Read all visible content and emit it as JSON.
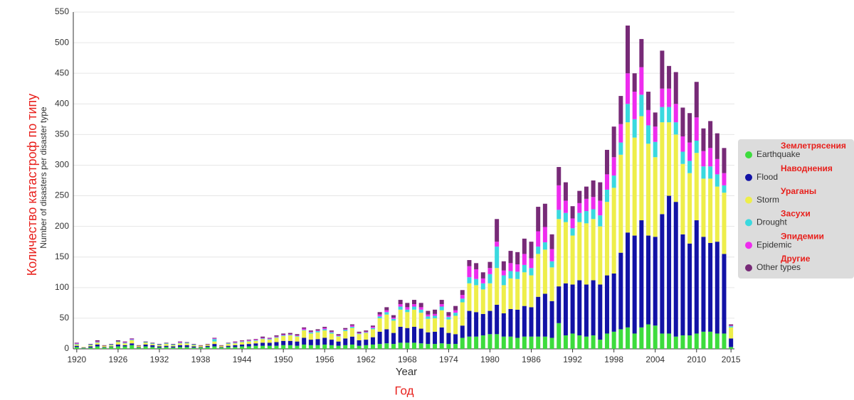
{
  "chart_data": {
    "type": "stacked_bar",
    "x_label": "Year",
    "y_label": "Number of disasters per disaster type",
    "annotations": [
      "Количество катастроф по типу",
      "Год"
    ],
    "legend_annotations": [
      "Землетрясения",
      "Наводнения",
      "Ураганы",
      "Засухи",
      "Эпидемии",
      "Другие"
    ],
    "legend": "right",
    "grid": true,
    "xlim": [
      1919.5,
      2015.5
    ],
    "xticks": [
      1920,
      1926,
      1932,
      1938,
      1944,
      1950,
      1956,
      1962,
      1968,
      1974,
      1980,
      1986,
      1992,
      1998,
      2004,
      2010,
      2015
    ],
    "ylim": [
      0,
      550
    ],
    "yticks": [
      0,
      50,
      100,
      150,
      200,
      250,
      300,
      350,
      400,
      450,
      500,
      550
    ],
    "x": [
      1920,
      1921,
      1922,
      1923,
      1924,
      1925,
      1926,
      1927,
      1928,
      1929,
      1930,
      1931,
      1932,
      1933,
      1934,
      1935,
      1936,
      1937,
      1938,
      1939,
      1940,
      1941,
      1942,
      1943,
      1944,
      1945,
      1946,
      1947,
      1948,
      1949,
      1950,
      1951,
      1952,
      1953,
      1954,
      1955,
      1956,
      1957,
      1958,
      1959,
      1960,
      1961,
      1962,
      1963,
      1964,
      1965,
      1966,
      1967,
      1968,
      1969,
      1970,
      1971,
      1972,
      1973,
      1974,
      1975,
      1976,
      1977,
      1978,
      1979,
      1980,
      1981,
      1982,
      1983,
      1984,
      1985,
      1986,
      1987,
      1988,
      1989,
      1990,
      1991,
      1992,
      1993,
      1994,
      1995,
      1996,
      1997,
      1998,
      1999,
      2000,
      2001,
      2002,
      2003,
      2004,
      2005,
      2006,
      2007,
      2008,
      2009,
      2010,
      2011,
      2012,
      2013,
      2014,
      2015
    ],
    "series": [
      {
        "name": "Earthquake",
        "color": "#3ddc3d",
        "values": [
          3,
          1,
          2,
          4,
          2,
          3,
          4,
          4,
          6,
          2,
          4,
          3,
          2,
          3,
          2,
          3,
          3,
          2,
          2,
          3,
          4,
          2,
          3,
          3,
          4,
          4,
          5,
          5,
          5,
          5,
          6,
          6,
          5,
          7,
          6,
          6,
          7,
          6,
          5,
          6,
          7,
          5,
          6,
          7,
          8,
          9,
          8,
          10,
          10,
          10,
          9,
          8,
          8,
          9,
          8,
          8,
          18,
          20,
          20,
          22,
          24,
          24,
          20,
          20,
          18,
          20,
          20,
          20,
          20,
          18,
          42,
          22,
          25,
          22,
          20,
          22,
          15,
          25,
          28,
          32,
          35,
          25,
          35,
          40,
          38,
          25,
          25,
          20,
          22,
          22,
          25,
          28,
          28,
          25,
          25,
          3
        ]
      },
      {
        "name": "Flood",
        "color": "#1212a6",
        "values": [
          2,
          1,
          2,
          3,
          1,
          1,
          3,
          2,
          3,
          1,
          3,
          3,
          2,
          2,
          2,
          3,
          3,
          2,
          1,
          2,
          4,
          1,
          2,
          3,
          3,
          4,
          4,
          5,
          5,
          6,
          7,
          7,
          7,
          11,
          9,
          10,
          11,
          9,
          7,
          11,
          13,
          9,
          9,
          12,
          20,
          23,
          18,
          26,
          24,
          26,
          24,
          19,
          20,
          26,
          18,
          16,
          20,
          42,
          40,
          35,
          38,
          48,
          38,
          45,
          46,
          50,
          48,
          65,
          70,
          60,
          60,
          85,
          80,
          90,
          85,
          90,
          90,
          95,
          95,
          125,
          155,
          160,
          175,
          145,
          145,
          195,
          225,
          220,
          165,
          150,
          185,
          155,
          145,
          150,
          130,
          14
        ]
      },
      {
        "name": "Storm",
        "color": "#eeee4a",
        "values": [
          2,
          1,
          2,
          3,
          2,
          2,
          4,
          3,
          5,
          2,
          3,
          2,
          2,
          3,
          2,
          3,
          3,
          2,
          2,
          2,
          4,
          2,
          3,
          3,
          4,
          4,
          4,
          6,
          5,
          7,
          8,
          9,
          8,
          12,
          10,
          11,
          12,
          10,
          8,
          12,
          14,
          10,
          11,
          13,
          22,
          24,
          20,
          28,
          26,
          28,
          26,
          22,
          22,
          28,
          22,
          30,
          38,
          45,
          44,
          40,
          45,
          60,
          46,
          50,
          50,
          55,
          52,
          70,
          72,
          55,
          110,
          100,
          80,
          95,
          100,
          100,
          95,
          120,
          140,
          160,
          180,
          160,
          170,
          150,
          130,
          150,
          120,
          110,
          115,
          115,
          110,
          95,
          105,
          90,
          100,
          18
        ]
      },
      {
        "name": "Drought",
        "color": "#3ad9df",
        "values": [
          1,
          0,
          1,
          1,
          0,
          1,
          1,
          1,
          1,
          0,
          1,
          1,
          1,
          1,
          1,
          1,
          1,
          1,
          0,
          0,
          4,
          0,
          1,
          1,
          1,
          1,
          1,
          1,
          1,
          1,
          1,
          1,
          1,
          1,
          2,
          2,
          2,
          2,
          1,
          2,
          2,
          1,
          1,
          2,
          3,
          4,
          3,
          5,
          4,
          5,
          5,
          4,
          4,
          6,
          4,
          5,
          6,
          10,
          10,
          10,
          15,
          35,
          16,
          12,
          12,
          12,
          12,
          12,
          12,
          10,
          15,
          15,
          12,
          15,
          20,
          16,
          18,
          20,
          20,
          20,
          30,
          30,
          35,
          30,
          25,
          25,
          25,
          20,
          20,
          20,
          20,
          20,
          20,
          20,
          12,
          2
        ]
      },
      {
        "name": "Epidemic",
        "color": "#ee2cee",
        "values": [
          1,
          0,
          0,
          1,
          0,
          0,
          0,
          1,
          1,
          0,
          0,
          0,
          0,
          0,
          0,
          1,
          0,
          0,
          0,
          0,
          1,
          0,
          0,
          1,
          1,
          1,
          1,
          1,
          1,
          1,
          1,
          1,
          1,
          2,
          1,
          1,
          2,
          1,
          1,
          1,
          2,
          1,
          1,
          2,
          3,
          3,
          2,
          4,
          4,
          4,
          4,
          3,
          3,
          4,
          2,
          4,
          6,
          18,
          16,
          8,
          10,
          8,
          8,
          13,
          12,
          18,
          16,
          25,
          25,
          20,
          40,
          20,
          16,
          16,
          20,
          20,
          24,
          25,
          30,
          30,
          50,
          45,
          45,
          25,
          25,
          30,
          30,
          30,
          25,
          30,
          38,
          25,
          30,
          25,
          20,
          1
        ]
      },
      {
        "name": "Other types",
        "color": "#772a77",
        "values": [
          1,
          0,
          1,
          2,
          1,
          1,
          2,
          1,
          1,
          1,
          1,
          1,
          1,
          1,
          1,
          1,
          1,
          1,
          1,
          1,
          1,
          1,
          1,
          1,
          1,
          1,
          1,
          2,
          1,
          2,
          2,
          2,
          2,
          2,
          2,
          2,
          2,
          2,
          2,
          2,
          2,
          2,
          2,
          2,
          4,
          5,
          4,
          7,
          7,
          7,
          7,
          6,
          7,
          7,
          6,
          7,
          8,
          10,
          10,
          10,
          10,
          37,
          15,
          20,
          20,
          25,
          27,
          40,
          38,
          24,
          30,
          30,
          20,
          20,
          20,
          27,
          30,
          40,
          50,
          46,
          78,
          30,
          46,
          30,
          23,
          62,
          37,
          52,
          47,
          48,
          58,
          37,
          44,
          42,
          41,
          2
        ]
      }
    ]
  }
}
